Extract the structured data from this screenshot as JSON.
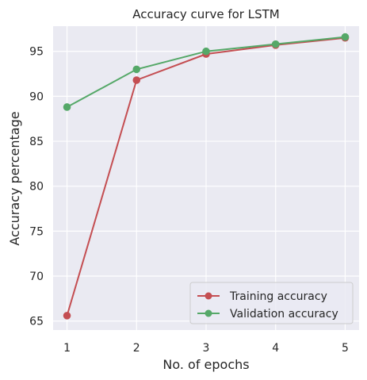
{
  "chart_data": {
    "type": "line",
    "title": "Accuracy curve for LSTM",
    "xlabel": "No. of epochs",
    "ylabel": "Accuracy percentage",
    "x": [
      1,
      2,
      3,
      4,
      5
    ],
    "xticks": [
      "1",
      "2",
      "3",
      "4",
      "5"
    ],
    "yticks": [
      "65",
      "70",
      "75",
      "80",
      "85",
      "90",
      "95"
    ],
    "xlim": [
      0.8,
      5.2
    ],
    "ylim": [
      64.0,
      97.8
    ],
    "grid": true,
    "legend_position": "lower-right",
    "series": [
      {
        "name": "Training accuracy",
        "color": "#c44e52",
        "values": [
          65.6,
          91.8,
          94.7,
          95.7,
          96.5
        ]
      },
      {
        "name": "Validation accuracy",
        "color": "#55a868",
        "values": [
          88.8,
          93.0,
          95.0,
          95.8,
          96.6
        ]
      }
    ]
  }
}
